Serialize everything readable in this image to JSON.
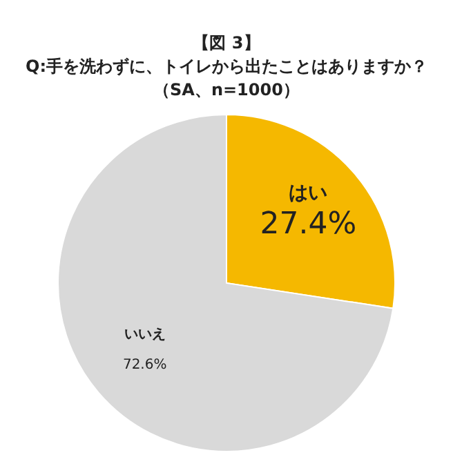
{
  "chart_data": {
    "type": "pie",
    "title": [
      "【図 3】",
      "Q:手を洗わずに、トイレから出たことはありますか？",
      "（SA、n=1000）"
    ],
    "categories": [
      "はい",
      "いいえ"
    ],
    "values": [
      27.4,
      72.6
    ],
    "colors": [
      "#f5b800",
      "#d9d9d9"
    ],
    "value_labels": [
      "27.4%",
      "72.6%"
    ]
  }
}
